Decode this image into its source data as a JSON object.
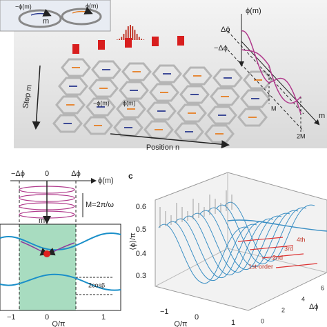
{
  "top_panel": {
    "inset_left": "−ϕ(m)",
    "inset_right": "ϕ(m)",
    "inset_ring": "m",
    "phase_axis": "ϕ(m)",
    "delta_pos": "Δϕ",
    "delta_neg": "−Δϕ",
    "period_1": "M",
    "period_2": "2M",
    "time_axis": "m",
    "step_axis": "Step m",
    "position_axis": "Position n",
    "lattice_neg": "−ϕ(m)",
    "lattice_pos": "ϕ(m)"
  },
  "panel_b": {
    "x_labels": [
      "−Δϕ",
      "0",
      "Δϕ"
    ],
    "phase_axis": "ϕ(m)",
    "period": "M=2π/ω",
    "step": "m",
    "gap": "2cosβ",
    "q_ticks": [
      "−1",
      "0",
      "1"
    ],
    "q_axis": "Q/π"
  },
  "panel_c": {
    "label": "c",
    "z_axis": "⟨ϕ⟩/π",
    "z_ticks": [
      "0.6",
      "0.5",
      "0.4",
      "0.3"
    ],
    "orders": [
      "4th",
      "3rd",
      "2nd",
      "1st-order"
    ],
    "q_ticks": [
      "−1",
      "0",
      "1"
    ],
    "q_axis": "Q/π",
    "d_ticks": [
      "0",
      "2",
      "4",
      "6"
    ],
    "d_axis": "Δϕ"
  }
}
